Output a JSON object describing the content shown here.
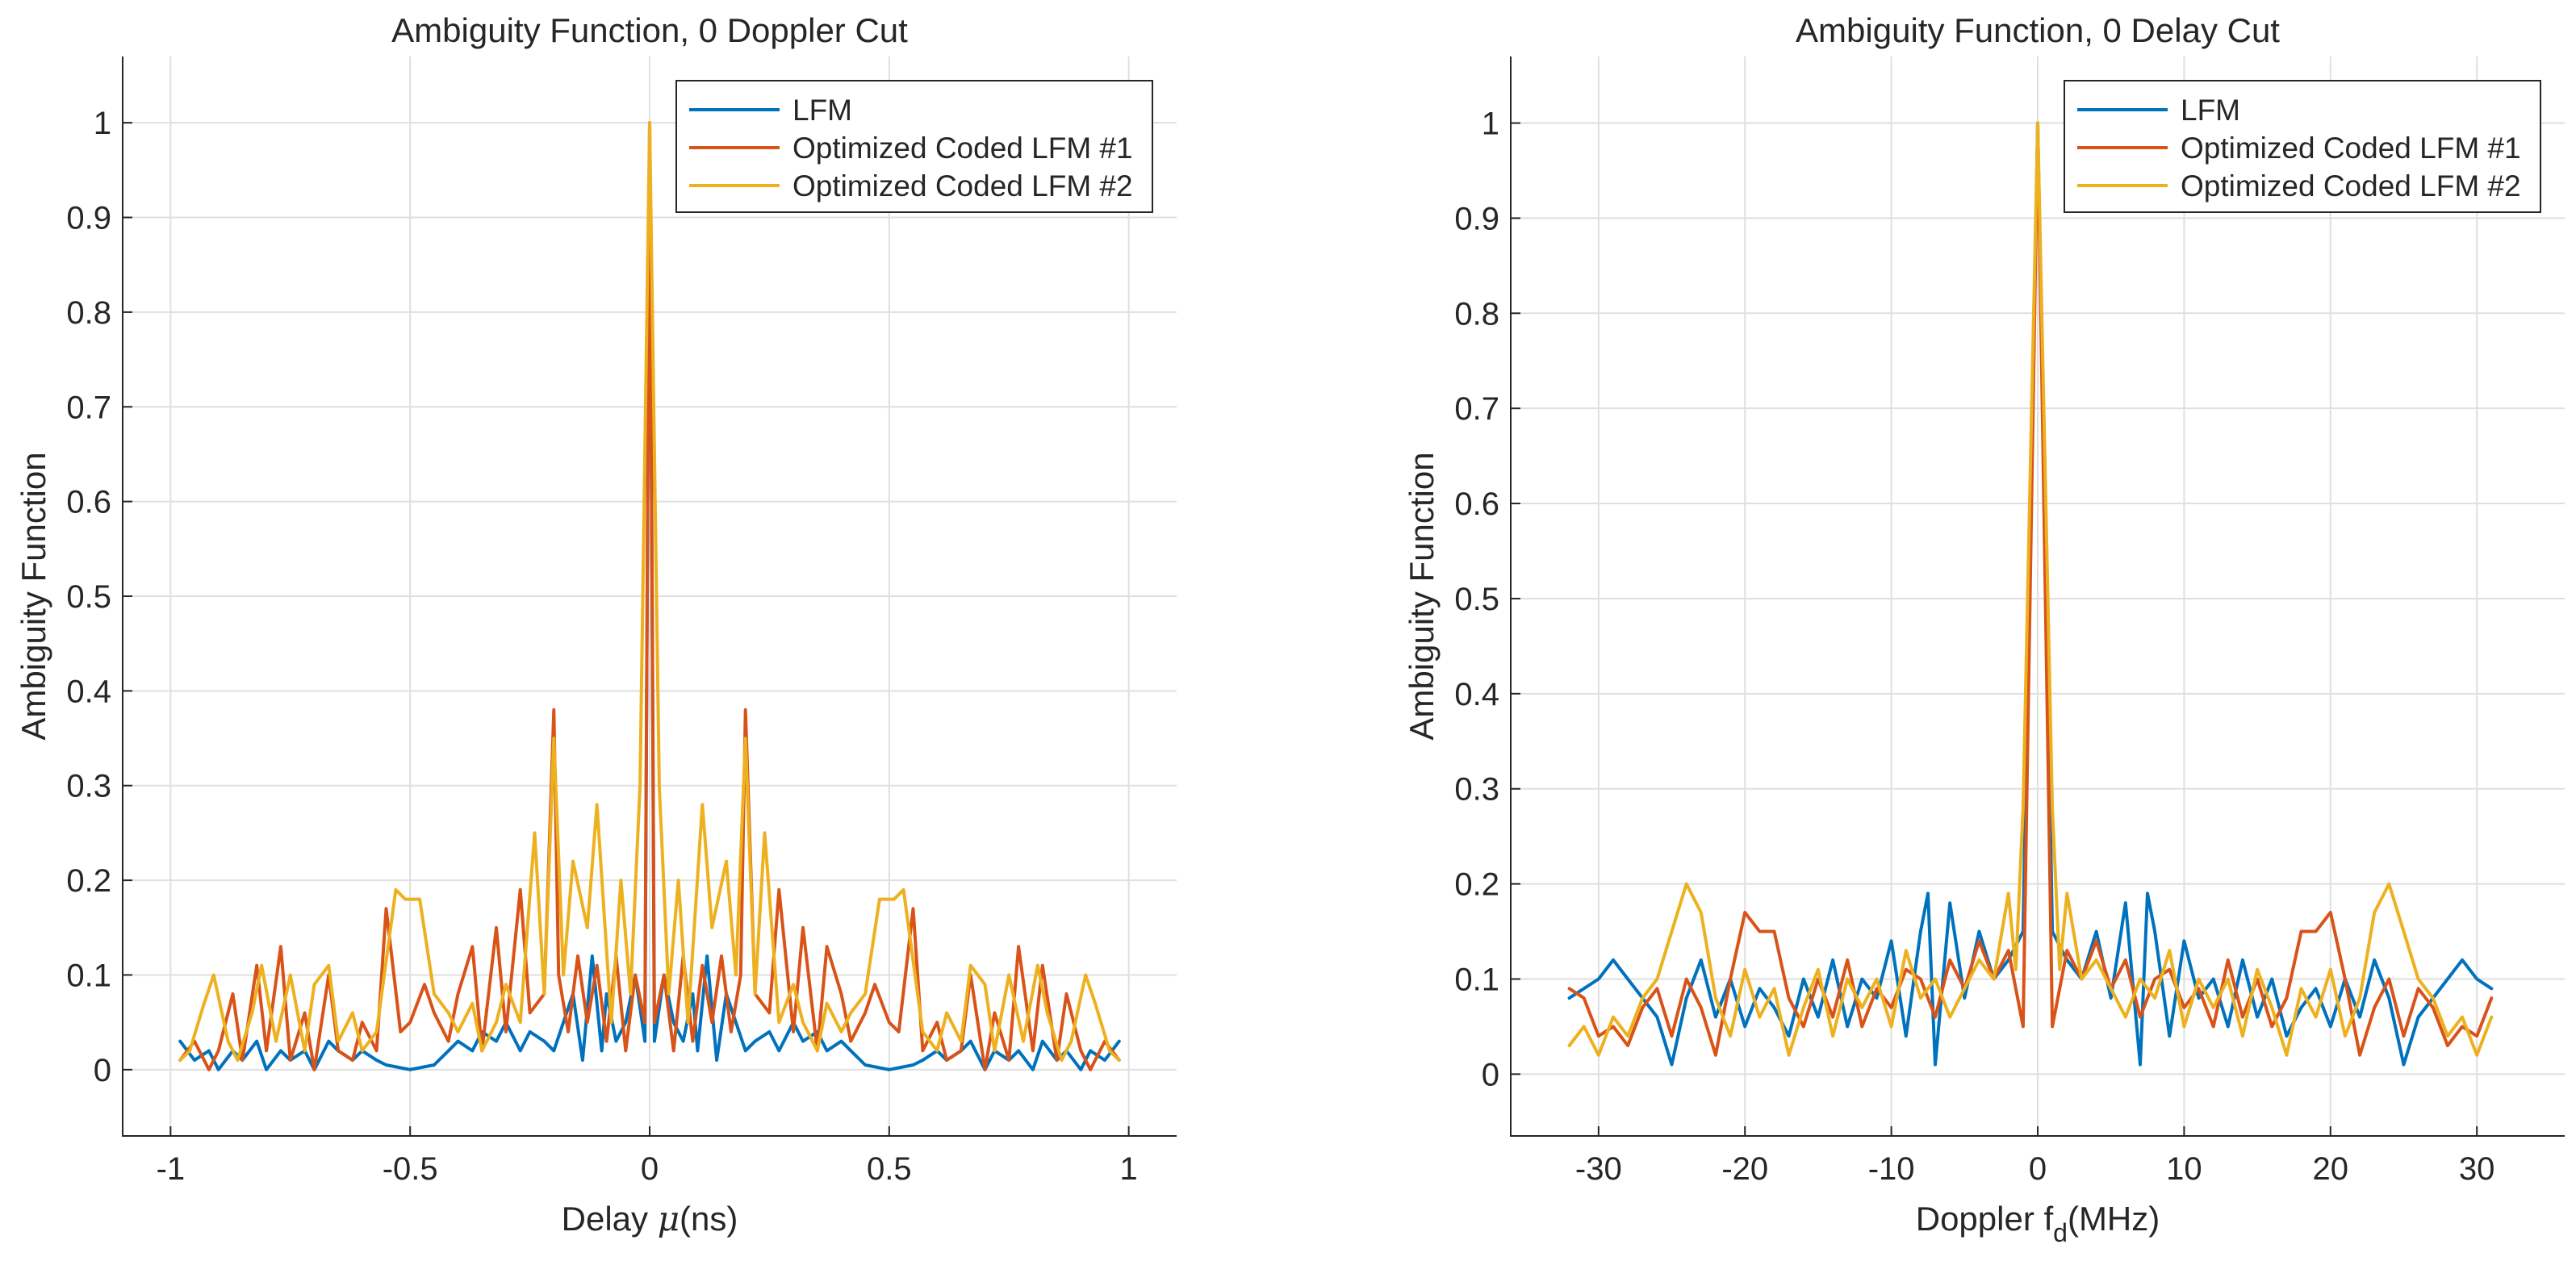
{
  "chart_data": [
    {
      "type": "line",
      "title": "Ambiguity Function, 0 Doppler Cut",
      "xlabel": "Delay μ(ns)",
      "ylabel": "Ambiguity Function",
      "xlim": [
        -1.1,
        1.1
      ],
      "ylim": [
        -0.07,
        1.07
      ],
      "xticks": [
        -1,
        -0.5,
        0,
        0.5,
        1
      ],
      "xtick_labels": [
        "-1",
        "-0.5",
        "0",
        "0.5",
        "1"
      ],
      "yticks": [
        0,
        0.1,
        0.2,
        0.3,
        0.4,
        0.5,
        0.6,
        0.7,
        0.8,
        0.9,
        1
      ],
      "ytick_labels": [
        "0",
        "0.1",
        "0.2",
        "0.3",
        "0.4",
        "0.5",
        "0.6",
        "0.7",
        "0.8",
        "0.9",
        "1"
      ],
      "grid": true,
      "legend_position": "top-right",
      "series": [
        {
          "name": "LFM",
          "color": "#0072BD",
          "x": [
            -0.98,
            -0.95,
            -0.92,
            -0.9,
            -0.87,
            -0.85,
            -0.82,
            -0.8,
            -0.77,
            -0.75,
            -0.72,
            -0.7,
            -0.67,
            -0.65,
            -0.62,
            -0.6,
            -0.57,
            -0.55,
            -0.5,
            -0.45,
            -0.42,
            -0.4,
            -0.37,
            -0.35,
            -0.32,
            -0.3,
            -0.27,
            -0.25,
            -0.22,
            -0.2,
            -0.18,
            -0.16,
            -0.14,
            -0.12,
            -0.1,
            -0.09,
            -0.07,
            -0.05,
            -0.03,
            -0.01,
            0,
            0.01,
            0.03,
            0.05,
            0.07,
            0.09,
            0.1,
            0.12,
            0.14,
            0.16,
            0.18,
            0.2,
            0.22,
            0.25,
            0.27,
            0.3,
            0.32,
            0.35,
            0.37,
            0.4,
            0.42,
            0.45,
            0.5,
            0.55,
            0.57,
            0.6,
            0.62,
            0.65,
            0.67,
            0.7,
            0.72,
            0.75,
            0.77,
            0.8,
            0.82,
            0.85,
            0.87,
            0.9,
            0.92,
            0.95,
            0.98
          ],
          "values": [
            0.03,
            0.01,
            0.02,
            0.0,
            0.02,
            0.01,
            0.03,
            0.0,
            0.02,
            0.01,
            0.02,
            0.0,
            0.03,
            0.02,
            0.01,
            0.02,
            0.01,
            0.005,
            0.0,
            0.005,
            0.02,
            0.03,
            0.02,
            0.04,
            0.03,
            0.05,
            0.02,
            0.04,
            0.03,
            0.02,
            0.05,
            0.08,
            0.01,
            0.12,
            0.02,
            0.08,
            0.03,
            0.05,
            0.1,
            0.03,
            1.0,
            0.03,
            0.1,
            0.05,
            0.03,
            0.08,
            0.02,
            0.12,
            0.01,
            0.08,
            0.05,
            0.02,
            0.03,
            0.04,
            0.02,
            0.05,
            0.03,
            0.04,
            0.02,
            0.03,
            0.02,
            0.005,
            0.0,
            0.005,
            0.01,
            0.02,
            0.01,
            0.02,
            0.03,
            0.0,
            0.02,
            0.01,
            0.02,
            0.0,
            0.03,
            0.01,
            0.02,
            0.0,
            0.02,
            0.01,
            0.03
          ]
        },
        {
          "name": "Optimized Coded LFM #1",
          "color": "#D95319",
          "x": [
            -0.98,
            -0.95,
            -0.92,
            -0.9,
            -0.87,
            -0.85,
            -0.82,
            -0.8,
            -0.77,
            -0.75,
            -0.72,
            -0.7,
            -0.67,
            -0.65,
            -0.62,
            -0.6,
            -0.57,
            -0.55,
            -0.52,
            -0.5,
            -0.47,
            -0.45,
            -0.42,
            -0.4,
            -0.37,
            -0.35,
            -0.32,
            -0.3,
            -0.27,
            -0.25,
            -0.22,
            -0.2,
            -0.19,
            -0.17,
            -0.15,
            -0.13,
            -0.11,
            -0.09,
            -0.07,
            -0.05,
            -0.03,
            -0.01,
            0,
            0.01,
            0.03,
            0.05,
            0.07,
            0.09,
            0.11,
            0.13,
            0.15,
            0.17,
            0.19,
            0.2,
            0.22,
            0.25,
            0.27,
            0.3,
            0.32,
            0.35,
            0.37,
            0.4,
            0.42,
            0.45,
            0.47,
            0.5,
            0.52,
            0.55,
            0.57,
            0.6,
            0.62,
            0.65,
            0.67,
            0.7,
            0.72,
            0.75,
            0.77,
            0.8,
            0.82,
            0.85,
            0.87,
            0.9,
            0.92,
            0.95,
            0.98
          ],
          "values": [
            0.01,
            0.03,
            0.0,
            0.02,
            0.08,
            0.01,
            0.11,
            0.02,
            0.13,
            0.01,
            0.06,
            0.0,
            0.1,
            0.02,
            0.01,
            0.05,
            0.02,
            0.17,
            0.04,
            0.05,
            0.09,
            0.06,
            0.03,
            0.08,
            0.13,
            0.02,
            0.15,
            0.04,
            0.19,
            0.06,
            0.08,
            0.38,
            0.1,
            0.04,
            0.12,
            0.05,
            0.11,
            0.03,
            0.12,
            0.02,
            0.1,
            0.05,
            1.0,
            0.05,
            0.1,
            0.02,
            0.12,
            0.03,
            0.11,
            0.05,
            0.12,
            0.04,
            0.1,
            0.38,
            0.08,
            0.06,
            0.19,
            0.04,
            0.15,
            0.02,
            0.13,
            0.08,
            0.03,
            0.06,
            0.09,
            0.05,
            0.04,
            0.17,
            0.02,
            0.05,
            0.01,
            0.02,
            0.1,
            0.0,
            0.06,
            0.01,
            0.13,
            0.02,
            0.11,
            0.01,
            0.08,
            0.02,
            0.0,
            0.03,
            0.01
          ]
        },
        {
          "name": "Optimized Coded LFM #2",
          "color": "#EDB120",
          "x": [
            -0.98,
            -0.96,
            -0.93,
            -0.91,
            -0.88,
            -0.86,
            -0.83,
            -0.81,
            -0.78,
            -0.75,
            -0.72,
            -0.7,
            -0.67,
            -0.65,
            -0.62,
            -0.6,
            -0.57,
            -0.53,
            -0.51,
            -0.48,
            -0.45,
            -0.42,
            -0.4,
            -0.37,
            -0.35,
            -0.32,
            -0.3,
            -0.27,
            -0.24,
            -0.22,
            -0.2,
            -0.18,
            -0.16,
            -0.13,
            -0.11,
            -0.08,
            -0.06,
            -0.04,
            -0.02,
            0,
            0.02,
            0.04,
            0.06,
            0.08,
            0.11,
            0.13,
            0.16,
            0.18,
            0.2,
            0.22,
            0.24,
            0.27,
            0.3,
            0.32,
            0.35,
            0.37,
            0.4,
            0.42,
            0.45,
            0.48,
            0.51,
            0.53,
            0.57,
            0.6,
            0.62,
            0.65,
            0.67,
            0.7,
            0.72,
            0.75,
            0.78,
            0.81,
            0.83,
            0.86,
            0.88,
            0.91,
            0.93,
            0.96,
            0.98
          ],
          "values": [
            0.01,
            0.02,
            0.07,
            0.1,
            0.03,
            0.01,
            0.06,
            0.11,
            0.03,
            0.1,
            0.02,
            0.09,
            0.11,
            0.03,
            0.06,
            0.02,
            0.04,
            0.19,
            0.18,
            0.18,
            0.08,
            0.06,
            0.04,
            0.07,
            0.02,
            0.05,
            0.09,
            0.05,
            0.25,
            0.08,
            0.35,
            0.1,
            0.22,
            0.15,
            0.28,
            0.05,
            0.2,
            0.08,
            0.3,
            1.0,
            0.3,
            0.08,
            0.2,
            0.05,
            0.28,
            0.15,
            0.22,
            0.1,
            0.35,
            0.08,
            0.25,
            0.05,
            0.09,
            0.05,
            0.02,
            0.07,
            0.04,
            0.06,
            0.08,
            0.18,
            0.18,
            0.19,
            0.04,
            0.02,
            0.06,
            0.03,
            0.11,
            0.09,
            0.02,
            0.1,
            0.03,
            0.11,
            0.06,
            0.01,
            0.03,
            0.1,
            0.07,
            0.02,
            0.01
          ]
        }
      ]
    },
    {
      "type": "line",
      "title": "Ambiguity Function, 0 Delay Cut",
      "xlabel": "Doppler f",
      "xlabel_subscript": "d",
      "xlabel_suffix": "(MHz)",
      "ylabel": "Ambiguity Function",
      "xlim": [
        -36,
        36
      ],
      "ylim": [
        -0.065,
        1.07
      ],
      "xticks": [
        -30,
        -20,
        -10,
        0,
        10,
        20,
        30
      ],
      "xtick_labels": [
        "-30",
        "-20",
        "-10",
        "0",
        "10",
        "20",
        "30"
      ],
      "yticks": [
        0,
        0.1,
        0.2,
        0.3,
        0.4,
        0.5,
        0.6,
        0.7,
        0.8,
        0.9,
        1
      ],
      "ytick_labels": [
        "0",
        "0.1",
        "0.2",
        "0.3",
        "0.4",
        "0.5",
        "0.6",
        "0.7",
        "0.8",
        "0.9",
        "1"
      ],
      "grid": true,
      "legend_position": "top-right",
      "series": [
        {
          "name": "LFM",
          "color": "#0072BD",
          "x": [
            -32,
            -31,
            -30,
            -29,
            -28,
            -27,
            -26,
            -25,
            -24,
            -23,
            -22,
            -21,
            -20,
            -19,
            -18,
            -17,
            -16,
            -15,
            -14,
            -13,
            -12,
            -11,
            -10,
            -9,
            -8,
            -7.5,
            -7,
            -6,
            -5,
            -4,
            -3,
            -2,
            -1,
            0,
            1,
            2,
            3,
            4,
            5,
            6,
            7,
            7.5,
            8,
            9,
            10,
            11,
            12,
            13,
            14,
            15,
            16,
            17,
            18,
            19,
            20,
            21,
            22,
            23,
            24,
            25,
            26,
            27,
            28,
            29,
            30,
            31
          ],
          "values": [
            0.08,
            0.09,
            0.1,
            0.12,
            0.1,
            0.08,
            0.06,
            0.01,
            0.08,
            0.12,
            0.06,
            0.1,
            0.05,
            0.09,
            0.07,
            0.04,
            0.1,
            0.06,
            0.12,
            0.05,
            0.1,
            0.08,
            0.14,
            0.04,
            0.15,
            0.19,
            0.01,
            0.18,
            0.08,
            0.15,
            0.1,
            0.12,
            0.15,
            1.0,
            0.15,
            0.12,
            0.1,
            0.15,
            0.08,
            0.18,
            0.01,
            0.19,
            0.15,
            0.04,
            0.14,
            0.08,
            0.1,
            0.05,
            0.12,
            0.06,
            0.1,
            0.04,
            0.07,
            0.09,
            0.05,
            0.1,
            0.06,
            0.12,
            0.08,
            0.01,
            0.06,
            0.08,
            0.1,
            0.12,
            0.1,
            0.09
          ]
        },
        {
          "name": "Optimized Coded LFM #1",
          "color": "#D95319",
          "x": [
            -32,
            -31,
            -30,
            -29,
            -28,
            -27,
            -26,
            -25,
            -24,
            -23,
            -22,
            -21,
            -20,
            -19,
            -18,
            -17,
            -16,
            -15,
            -14,
            -13,
            -12,
            -11,
            -10,
            -9,
            -8,
            -7,
            -6,
            -5,
            -4,
            -3,
            -2,
            -1,
            0,
            1,
            2,
            3,
            4,
            5,
            6,
            7,
            8,
            9,
            10,
            11,
            12,
            13,
            14,
            15,
            16,
            17,
            18,
            19,
            20,
            21,
            22,
            23,
            24,
            25,
            26,
            27,
            28,
            29,
            30,
            31
          ],
          "values": [
            0.09,
            0.08,
            0.04,
            0.05,
            0.03,
            0.07,
            0.09,
            0.04,
            0.1,
            0.07,
            0.02,
            0.1,
            0.17,
            0.15,
            0.15,
            0.08,
            0.05,
            0.1,
            0.06,
            0.12,
            0.05,
            0.09,
            0.07,
            0.11,
            0.1,
            0.06,
            0.12,
            0.09,
            0.14,
            0.1,
            0.13,
            0.05,
            1.0,
            0.05,
            0.13,
            0.1,
            0.14,
            0.09,
            0.12,
            0.06,
            0.1,
            0.11,
            0.07,
            0.09,
            0.05,
            0.12,
            0.06,
            0.1,
            0.05,
            0.08,
            0.15,
            0.15,
            0.17,
            0.1,
            0.02,
            0.07,
            0.1,
            0.04,
            0.09,
            0.07,
            0.03,
            0.05,
            0.04,
            0.08
          ]
        },
        {
          "name": "Optimized Coded LFM #2",
          "color": "#EDB120",
          "x": [
            -32,
            -31,
            -30,
            -29,
            -28,
            -27,
            -26,
            -25,
            -24,
            -23,
            -22,
            -21,
            -20,
            -19,
            -18,
            -17,
            -16,
            -15,
            -14,
            -13,
            -12,
            -11,
            -10,
            -9,
            -8,
            -7,
            -6,
            -5,
            -4,
            -3,
            -2,
            -1.5,
            -1,
            0,
            1,
            1.5,
            2,
            3,
            4,
            5,
            6,
            7,
            8,
            9,
            10,
            11,
            12,
            13,
            14,
            15,
            16,
            17,
            18,
            19,
            20,
            21,
            22,
            23,
            24,
            25,
            26,
            27,
            28,
            29,
            30,
            31
          ],
          "values": [
            0.03,
            0.05,
            0.02,
            0.06,
            0.04,
            0.08,
            0.1,
            0.15,
            0.2,
            0.17,
            0.08,
            0.04,
            0.11,
            0.06,
            0.09,
            0.02,
            0.07,
            0.11,
            0.04,
            0.1,
            0.07,
            0.1,
            0.05,
            0.13,
            0.08,
            0.1,
            0.06,
            0.09,
            0.12,
            0.1,
            0.19,
            0.11,
            0.28,
            1.0,
            0.28,
            0.11,
            0.19,
            0.1,
            0.12,
            0.09,
            0.06,
            0.1,
            0.08,
            0.13,
            0.05,
            0.1,
            0.07,
            0.1,
            0.04,
            0.11,
            0.07,
            0.02,
            0.09,
            0.06,
            0.11,
            0.04,
            0.08,
            0.17,
            0.2,
            0.15,
            0.1,
            0.08,
            0.04,
            0.06,
            0.02,
            0.06
          ]
        }
      ]
    }
  ]
}
